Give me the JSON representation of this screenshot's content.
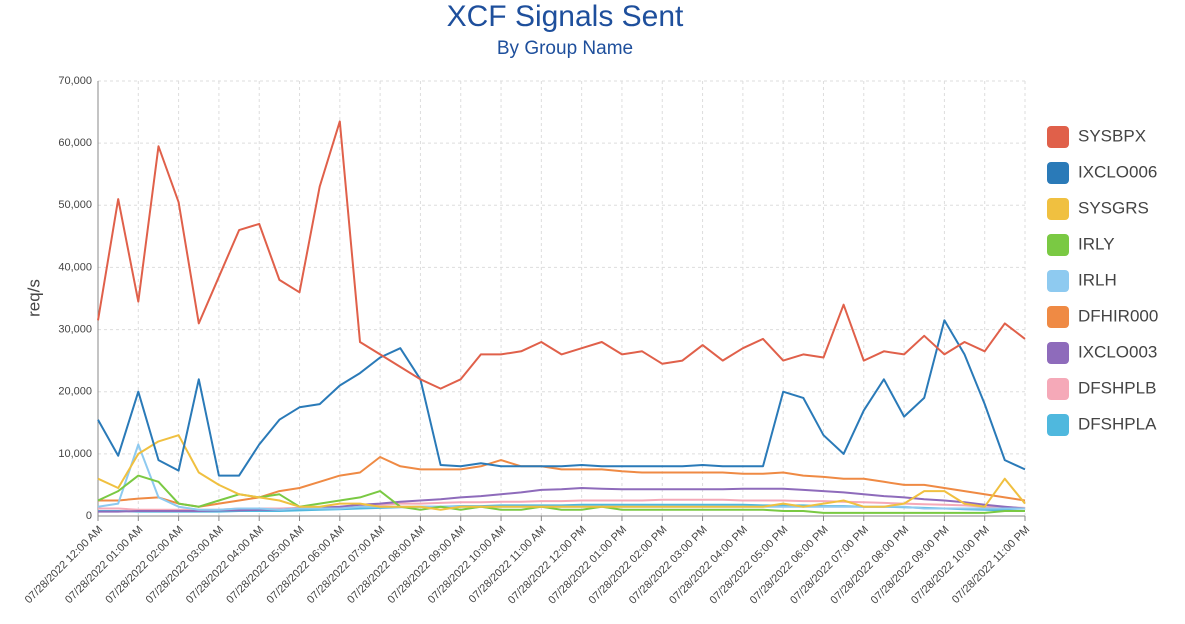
{
  "chart_data": {
    "type": "line",
    "title": "XCF Signals Sent",
    "subtitle": "By Group Name",
    "y_label": "req/s",
    "categories": [
      "07/28/2022 12:00 AM",
      null,
      "07/28/2022 01:00 AM",
      null,
      "07/28/2022 02:00 AM",
      null,
      "07/28/2022 03:00 AM",
      null,
      "07/28/2022 04:00 AM",
      null,
      "07/28/2022 05:00 AM",
      null,
      "07/28/2022 06:00 AM",
      null,
      "07/28/2022 07:00 AM",
      null,
      "07/28/2022 08:00 AM",
      null,
      "07/28/2022 09:00 AM",
      null,
      "07/28/2022 10:00 AM",
      null,
      "07/28/2022 11:00 AM",
      null,
      "07/28/2022 12:00 PM",
      null,
      "07/28/2022 01:00 PM",
      null,
      "07/28/2022 02:00 PM",
      null,
      "07/28/2022 03:00 PM",
      null,
      "07/28/2022 04:00 PM",
      null,
      "07/28/2022 05:00 PM",
      null,
      "07/28/2022 06:00 PM",
      null,
      "07/28/2022 07:00 PM",
      null,
      "07/28/2022 08:00 PM",
      null,
      "07/28/2022 09:00 PM",
      null,
      "07/28/2022 10:00 PM",
      null,
      "07/28/2022 11:00 PM"
    ],
    "ylim": [
      0,
      70000
    ],
    "yticks": [
      0,
      {
        "value": 10000,
        "label": "10,000"
      },
      {
        "value": 20000,
        "label": "20,000"
      },
      {
        "value": 30000,
        "label": "30,000"
      },
      {
        "value": 40000,
        "label": "40,000"
      },
      {
        "value": 50000,
        "label": "50,000"
      },
      {
        "value": 60000,
        "label": "60,000"
      },
      {
        "value": 70000,
        "label": "70,000"
      }
    ],
    "grid": true,
    "legend": "right",
    "series": [
      {
        "name": "SYSBPX",
        "color": "#e0604a",
        "values": [
          31500,
          51000,
          34500,
          59500,
          50500,
          31000,
          38500,
          46000,
          47000,
          38000,
          36000,
          53000,
          63500,
          28000,
          26000,
          24000,
          22000,
          20500,
          22000,
          26000,
          26000,
          26500,
          28000,
          26000,
          27000,
          28000,
          26000,
          26500,
          24500,
          25000,
          27500,
          25000,
          27000,
          28500,
          25000,
          26000,
          25500,
          34000,
          25000,
          26500,
          26000,
          29000,
          26000,
          28000,
          26500,
          31000,
          28500
        ]
      },
      {
        "name": "IXCLO006",
        "color": "#2a7ab8",
        "values": [
          15500,
          9700,
          20000,
          9000,
          7300,
          22000,
          6500,
          6500,
          11500,
          15500,
          17500,
          18000,
          21000,
          23000,
          25500,
          27000,
          22000,
          8200,
          8000,
          8500,
          8000,
          8000,
          8000,
          8000,
          8200,
          8000,
          8000,
          8000,
          8000,
          8000,
          8200,
          8000,
          8000,
          8000,
          20000,
          19000,
          13000,
          10000,
          17000,
          22000,
          16000,
          19000,
          31500,
          26000,
          18000,
          9000,
          7500
        ]
      },
      {
        "name": "SYSGRS",
        "color": "#f0c040",
        "values": [
          6000,
          4500,
          10000,
          12000,
          13000,
          7000,
          5000,
          3500,
          3000,
          2500,
          1500,
          1500,
          2000,
          2000,
          1500,
          1500,
          1500,
          1000,
          1500,
          1500,
          1500,
          1500,
          1500,
          1500,
          1500,
          1500,
          1500,
          1500,
          1500,
          1500,
          1500,
          1500,
          1500,
          1500,
          2000,
          1500,
          2000,
          2500,
          1500,
          1500,
          2000,
          4000,
          4000,
          2000,
          1500,
          6000,
          2000
        ]
      },
      {
        "name": "IRLY",
        "color": "#7ac943",
        "values": [
          2500,
          4000,
          6500,
          5500,
          2000,
          1500,
          2500,
          3500,
          3000,
          3500,
          1500,
          2000,
          2500,
          3000,
          4000,
          1500,
          1000,
          1500,
          1000,
          1500,
          1000,
          1000,
          1500,
          1000,
          1000,
          1500,
          1000,
          1000,
          1000,
          1000,
          1000,
          1000,
          1000,
          1000,
          800,
          800,
          500,
          500,
          500,
          500,
          500,
          500,
          500,
          500,
          500,
          800,
          800
        ]
      },
      {
        "name": "IRLH",
        "color": "#8ecaf0",
        "values": [
          1500,
          2000,
          11500,
          3000,
          1500,
          1000,
          1000,
          1200,
          1200,
          1000,
          1200,
          1200,
          1200,
          1500,
          1500,
          1500,
          1500,
          1500,
          1500,
          1500,
          1500,
          1500,
          1500,
          1500,
          1500,
          1500,
          1500,
          1500,
          1500,
          1500,
          1500,
          1500,
          1500,
          1500,
          1500,
          1500,
          1500,
          1500,
          1500,
          1500,
          1500,
          1200,
          1200,
          1200,
          1200,
          1200,
          1200
        ]
      },
      {
        "name": "DFHIR000",
        "color": "#ef8a44",
        "values": [
          2500,
          2500,
          2800,
          3000,
          2000,
          1500,
          2000,
          2500,
          3000,
          4000,
          4500,
          5500,
          6500,
          7000,
          9500,
          8000,
          7500,
          7500,
          7500,
          8000,
          9000,
          8000,
          8000,
          7500,
          7500,
          7500,
          7200,
          7000,
          7000,
          7000,
          7000,
          7000,
          6800,
          6800,
          7000,
          6500,
          6300,
          6000,
          6000,
          5500,
          5000,
          5000,
          4500,
          4000,
          3500,
          3000,
          2500
        ]
      },
      {
        "name": "IXCLO003",
        "color": "#8e6bbb",
        "values": [
          700,
          700,
          800,
          800,
          800,
          800,
          900,
          900,
          1000,
          1000,
          1200,
          1300,
          1500,
          1800,
          2000,
          2300,
          2500,
          2700,
          3000,
          3200,
          3500,
          3800,
          4200,
          4300,
          4500,
          4400,
          4300,
          4300,
          4300,
          4300,
          4300,
          4300,
          4400,
          4400,
          4400,
          4200,
          4000,
          3800,
          3500,
          3200,
          3000,
          2700,
          2500,
          2200,
          1800,
          1500,
          1200
        ]
      },
      {
        "name": "DFSHPLB",
        "color": "#f5a9b8",
        "values": [
          1200,
          1200,
          1000,
          1000,
          1000,
          1000,
          1000,
          1200,
          1200,
          1200,
          1300,
          1400,
          1500,
          1600,
          1800,
          2000,
          2000,
          2100,
          2200,
          2200,
          2300,
          2300,
          2400,
          2400,
          2500,
          2500,
          2500,
          2500,
          2600,
          2600,
          2600,
          2600,
          2500,
          2500,
          2500,
          2400,
          2400,
          2300,
          2200,
          2100,
          2000,
          1900,
          1800,
          1700,
          1500,
          1400,
          1300
        ]
      },
      {
        "name": "DFSHPLA",
        "color": "#4fb8de",
        "values": [
          800,
          800,
          700,
          700,
          700,
          700,
          700,
          800,
          800,
          800,
          900,
          1000,
          1100,
          1200,
          1300,
          1400,
          1500,
          1500,
          1600,
          1600,
          1700,
          1700,
          1700,
          1700,
          1800,
          1800,
          1800,
          1800,
          1800,
          1800,
          1800,
          1800,
          1800,
          1700,
          1700,
          1700,
          1600,
          1600,
          1500,
          1500,
          1400,
          1300,
          1200,
          1100,
          1000,
          900,
          800
        ]
      }
    ]
  }
}
